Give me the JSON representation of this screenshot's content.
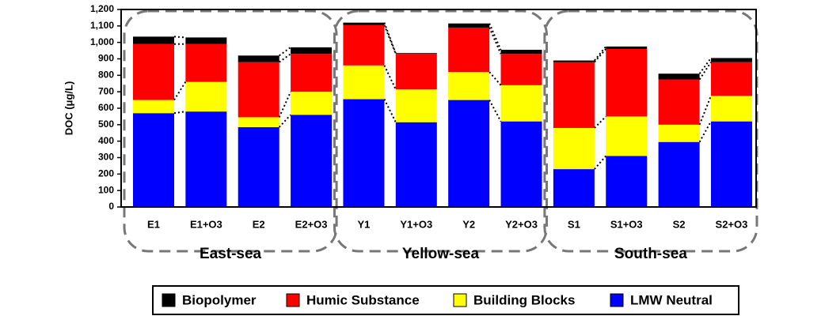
{
  "chart_data": {
    "type": "stacked_bar",
    "y_label": "DOC (μg/L)",
    "categories": [
      "E1",
      "E1+O3",
      "E2",
      "E2+O3",
      "Y1",
      "Y1+O3",
      "Y2",
      "Y2+O3",
      "S1",
      "S1+O3",
      "S2",
      "S2+O3"
    ],
    "groups": [
      "East-sea",
      "Yellow-sea",
      "South-sea"
    ],
    "series": [
      {
        "name": "LMW Neutral",
        "color": "#0000ff",
        "values": [
          570,
          580,
          485,
          560,
          655,
          515,
          650,
          520,
          230,
          310,
          395,
          520
        ]
      },
      {
        "name": "Building Blocks",
        "color": "#ffff00",
        "values": [
          80,
          180,
          60,
          140,
          205,
          200,
          170,
          220,
          250,
          240,
          105,
          155
        ]
      },
      {
        "name": "Humic Substance",
        "color": "#ff0000",
        "values": [
          340,
          230,
          335,
          230,
          245,
          215,
          270,
          190,
          400,
          410,
          275,
          205
        ]
      },
      {
        "name": "Biopolymer",
        "color": "#000000",
        "values": [
          45,
          40,
          40,
          40,
          15,
          5,
          25,
          25,
          10,
          15,
          35,
          25
        ]
      }
    ],
    "ylim": [
      0,
      1200
    ],
    "yticks": [
      0,
      100,
      200,
      300,
      400,
      500,
      600,
      700,
      800,
      900,
      {
        "value": 1000,
        "label": "1,000"
      },
      {
        "value": 1100,
        "label": "1,100"
      },
      {
        "value": 1200,
        "label": "1,200"
      }
    ],
    "grid": false
  }
}
